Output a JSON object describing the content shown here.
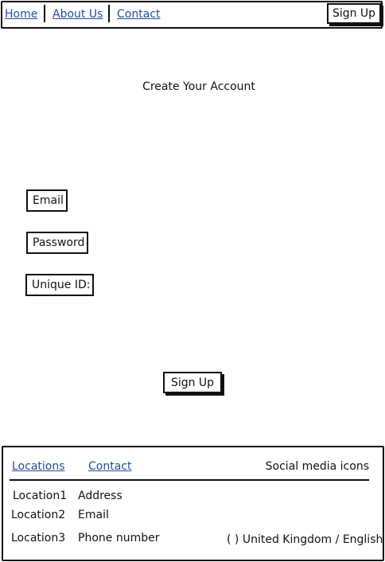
{
  "nav": {
    "links": [
      "Home",
      "About Us",
      "Contact"
    ],
    "signup_label": "Sign Up"
  },
  "main": {
    "title": "Create Your Account",
    "fields": [
      "Email",
      "Password",
      "Unique ID:"
    ],
    "submit_label": "Sign Up"
  },
  "footer": {
    "links": [
      "Locations",
      "Contact"
    ],
    "social_label": "Social media icons",
    "locations": [
      "Location1",
      "Location2",
      "Location3"
    ],
    "contact_items": [
      "Address",
      "Email",
      "Phone number"
    ],
    "locale_label": "United Kingdom / English",
    "locale_icon": "( )"
  }
}
